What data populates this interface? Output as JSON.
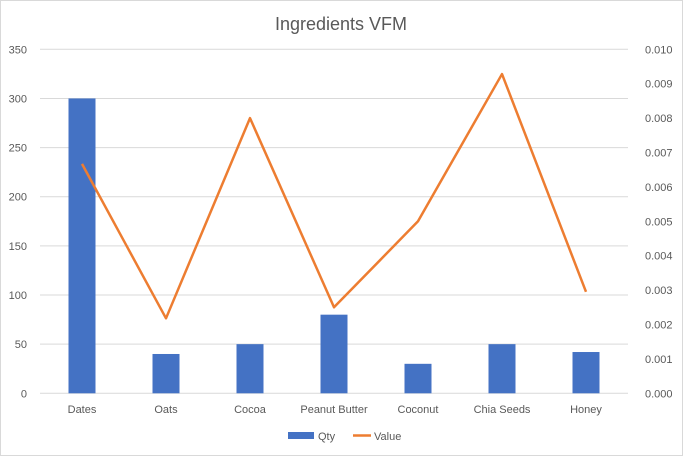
{
  "chart_data": {
    "type": "bar",
    "title": "Ingredients VFM",
    "categories": [
      "Dates",
      "Oats",
      "Cocoa",
      "Peanut Butter",
      "Coconut",
      "Chia Seeds",
      "Honey"
    ],
    "series": [
      {
        "name": "Qty",
        "type": "bar",
        "axis": "left",
        "color": "#4472C4",
        "values": [
          300,
          40,
          50,
          80,
          30,
          50,
          42
        ]
      },
      {
        "name": "Value",
        "type": "line",
        "axis": "right",
        "color": "#ED7D31",
        "values": [
          0.00667,
          0.00218,
          0.008,
          0.0025,
          0.005,
          0.00928,
          0.00295
        ]
      }
    ],
    "left_axis": {
      "min": 0,
      "max": 350,
      "step": 50,
      "ticks": [
        "0",
        "50",
        "100",
        "150",
        "200",
        "250",
        "300",
        "350"
      ]
    },
    "right_axis": {
      "min": 0,
      "max": 0.01,
      "step": 0.001,
      "ticks": [
        "0.000",
        "0.001",
        "0.002",
        "0.003",
        "0.004",
        "0.005",
        "0.006",
        "0.007",
        "0.008",
        "0.009",
        "0.010"
      ]
    },
    "grid": true,
    "legend": "bottom"
  }
}
